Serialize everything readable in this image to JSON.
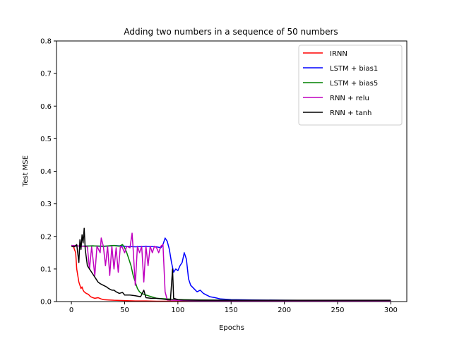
{
  "chart_data": {
    "type": "line",
    "title": "Adding two numbers in a sequence of 50 numbers",
    "xlabel": "Epochs",
    "ylabel": "Test MSE",
    "xlim": [
      -14,
      315
    ],
    "ylim": [
      0,
      0.8
    ],
    "xticks": [
      0,
      50,
      100,
      150,
      200,
      250,
      300
    ],
    "yticks": [
      0.0,
      0.1,
      0.2,
      0.3,
      0.4,
      0.5,
      0.6,
      0.7,
      0.8
    ],
    "grid": false,
    "legend_position": "top-right",
    "series": [
      {
        "name": "IRNN",
        "color": "#ff0000",
        "points": [
          [
            0,
            0.17
          ],
          [
            2,
            0.168
          ],
          [
            4,
            0.15
          ],
          [
            5,
            0.1
          ],
          [
            6,
            0.08
          ],
          [
            7,
            0.06
          ],
          [
            8,
            0.05
          ],
          [
            9,
            0.04
          ],
          [
            10,
            0.045
          ],
          [
            11,
            0.035
          ],
          [
            12,
            0.03
          ],
          [
            14,
            0.025
          ],
          [
            16,
            0.022
          ],
          [
            18,
            0.015
          ],
          [
            20,
            0.012
          ],
          [
            22,
            0.01
          ],
          [
            25,
            0.012
          ],
          [
            28,
            0.008
          ],
          [
            30,
            0.006
          ],
          [
            35,
            0.005
          ],
          [
            40,
            0.004
          ],
          [
            50,
            0.003
          ],
          [
            60,
            0.002
          ],
          [
            70,
            0.002
          ],
          [
            80,
            0.001
          ],
          [
            100,
            0.001
          ],
          [
            150,
            0.001
          ],
          [
            200,
            0.001
          ],
          [
            250,
            0.001
          ],
          [
            300,
            0.001
          ]
        ]
      },
      {
        "name": "LSTM + bias1",
        "color": "#0000ff",
        "points": [
          [
            0,
            0.172
          ],
          [
            10,
            0.17
          ],
          [
            20,
            0.171
          ],
          [
            30,
            0.169
          ],
          [
            40,
            0.172
          ],
          [
            50,
            0.17
          ],
          [
            60,
            0.168
          ],
          [
            70,
            0.17
          ],
          [
            80,
            0.168
          ],
          [
            84,
            0.165
          ],
          [
            86,
            0.175
          ],
          [
            88,
            0.195
          ],
          [
            90,
            0.185
          ],
          [
            92,
            0.16
          ],
          [
            94,
            0.12
          ],
          [
            96,
            0.09
          ],
          [
            98,
            0.1
          ],
          [
            100,
            0.095
          ],
          [
            102,
            0.11
          ],
          [
            104,
            0.12
          ],
          [
            106,
            0.15
          ],
          [
            108,
            0.13
          ],
          [
            110,
            0.07
          ],
          [
            112,
            0.05
          ],
          [
            115,
            0.04
          ],
          [
            118,
            0.03
          ],
          [
            121,
            0.035
          ],
          [
            124,
            0.025
          ],
          [
            127,
            0.02
          ],
          [
            130,
            0.015
          ],
          [
            135,
            0.012
          ],
          [
            140,
            0.008
          ],
          [
            150,
            0.006
          ],
          [
            170,
            0.005
          ],
          [
            200,
            0.004
          ],
          [
            250,
            0.003
          ],
          [
            300,
            0.003
          ]
        ]
      },
      {
        "name": "LSTM + bias5",
        "color": "#008000",
        "points": [
          [
            0,
            0.172
          ],
          [
            10,
            0.17
          ],
          [
            20,
            0.171
          ],
          [
            30,
            0.17
          ],
          [
            40,
            0.172
          ],
          [
            45,
            0.17
          ],
          [
            48,
            0.175
          ],
          [
            50,
            0.165
          ],
          [
            52,
            0.15
          ],
          [
            54,
            0.13
          ],
          [
            56,
            0.11
          ],
          [
            58,
            0.08
          ],
          [
            60,
            0.06
          ],
          [
            62,
            0.04
          ],
          [
            64,
            0.03
          ],
          [
            66,
            0.025
          ],
          [
            70,
            0.02
          ],
          [
            75,
            0.015
          ],
          [
            80,
            0.01
          ],
          [
            90,
            0.008
          ],
          [
            100,
            0.006
          ],
          [
            120,
            0.005
          ],
          [
            150,
            0.004
          ],
          [
            200,
            0.003
          ],
          [
            250,
            0.003
          ],
          [
            300,
            0.002
          ]
        ]
      },
      {
        "name": "RNN + relu",
        "color": "#bf00bf",
        "points": [
          [
            0,
            0.172
          ],
          [
            10,
            0.17
          ],
          [
            15,
            0.168
          ],
          [
            17,
            0.1
          ],
          [
            19,
            0.168
          ],
          [
            22,
            0.08
          ],
          [
            24,
            0.17
          ],
          [
            27,
            0.15
          ],
          [
            28,
            0.195
          ],
          [
            30,
            0.17
          ],
          [
            32,
            0.11
          ],
          [
            34,
            0.17
          ],
          [
            36,
            0.08
          ],
          [
            38,
            0.17
          ],
          [
            40,
            0.1
          ],
          [
            42,
            0.165
          ],
          [
            44,
            0.09
          ],
          [
            46,
            0.17
          ],
          [
            48,
            0.165
          ],
          [
            50,
            0.15
          ],
          [
            52,
            0.17
          ],
          [
            55,
            0.165
          ],
          [
            57,
            0.21
          ],
          [
            58,
            0.16
          ],
          [
            60,
            0.05
          ],
          [
            62,
            0.17
          ],
          [
            64,
            0.15
          ],
          [
            66,
            0.17
          ],
          [
            68,
            0.06
          ],
          [
            70,
            0.17
          ],
          [
            72,
            0.11
          ],
          [
            74,
            0.17
          ],
          [
            76,
            0.15
          ],
          [
            78,
            0.17
          ],
          [
            80,
            0.165
          ],
          [
            82,
            0.15
          ],
          [
            84,
            0.17
          ],
          [
            86,
            0.175
          ],
          [
            88,
            0.03
          ],
          [
            90,
            0.005
          ],
          [
            100,
            0.004
          ],
          [
            110,
            0.003
          ],
          [
            150,
            0.002
          ],
          [
            200,
            0.002
          ],
          [
            250,
            0.002
          ],
          [
            300,
            0.002
          ]
        ]
      },
      {
        "name": "RNN + tanh",
        "color": "#000000",
        "points": [
          [
            0,
            0.17
          ],
          [
            3,
            0.168
          ],
          [
            5,
            0.175
          ],
          [
            7,
            0.12
          ],
          [
            8,
            0.19
          ],
          [
            9,
            0.16
          ],
          [
            10,
            0.205
          ],
          [
            11,
            0.18
          ],
          [
            12,
            0.225
          ],
          [
            13,
            0.16
          ],
          [
            15,
            0.11
          ],
          [
            17,
            0.1
          ],
          [
            19,
            0.09
          ],
          [
            21,
            0.08
          ],
          [
            23,
            0.07
          ],
          [
            25,
            0.06
          ],
          [
            27,
            0.055
          ],
          [
            30,
            0.05
          ],
          [
            33,
            0.045
          ],
          [
            35,
            0.04
          ],
          [
            38,
            0.035
          ],
          [
            40,
            0.035
          ],
          [
            42,
            0.03
          ],
          [
            45,
            0.025
          ],
          [
            48,
            0.028
          ],
          [
            50,
            0.02
          ],
          [
            55,
            0.02
          ],
          [
            60,
            0.018
          ],
          [
            65,
            0.015
          ],
          [
            68,
            0.035
          ],
          [
            70,
            0.012
          ],
          [
            75,
            0.01
          ],
          [
            80,
            0.01
          ],
          [
            85,
            0.008
          ],
          [
            90,
            0.006
          ],
          [
            93,
            0.005
          ],
          [
            95,
            0.1
          ],
          [
            96,
            0.01
          ],
          [
            100,
            0.006
          ],
          [
            105,
            0.005
          ],
          [
            120,
            0.004
          ],
          [
            150,
            0.004
          ],
          [
            200,
            0.004
          ],
          [
            250,
            0.004
          ],
          [
            300,
            0.004
          ]
        ]
      }
    ]
  }
}
